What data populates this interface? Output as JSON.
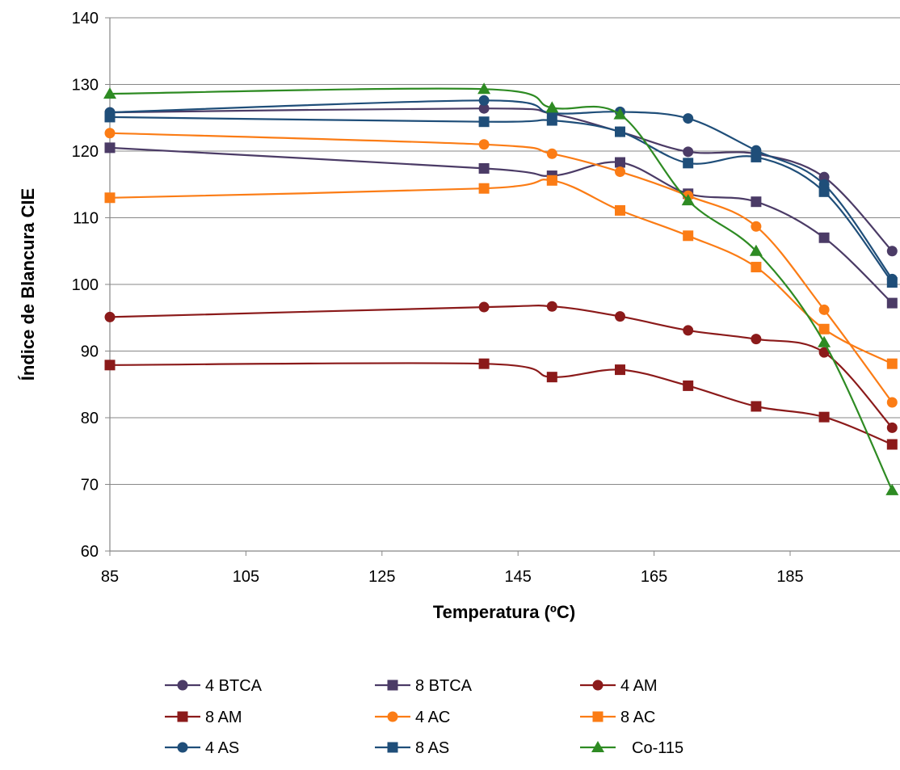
{
  "chart_data": {
    "type": "line",
    "title": "",
    "xlabel": "Temperatura (ºC)",
    "ylabel": "Índice de Blancura CIE",
    "xlim": [
      85,
      205
    ],
    "ylim": [
      60,
      140
    ],
    "x_ticks": [
      85,
      105,
      125,
      145,
      165,
      185
    ],
    "y_ticks": [
      60,
      70,
      80,
      90,
      100,
      110,
      120,
      130,
      140
    ],
    "grid": "horizontal",
    "smooth": true,
    "legend_position": "bottom",
    "series": [
      {
        "name": "4 BTCA",
        "color": "#4b3b66",
        "marker": "circle",
        "x": [
          85,
          140,
          150,
          160,
          170,
          180,
          190,
          200
        ],
        "y": [
          125.8,
          126.4,
          125.6,
          122.9,
          119.9,
          119.6,
          116.1,
          105
        ]
      },
      {
        "name": "8 BTCA",
        "color": "#4b3b66",
        "marker": "square",
        "x": [
          85,
          140,
          150,
          160,
          170,
          180,
          190,
          200
        ],
        "y": [
          120.5,
          117.4,
          116.3,
          118.3,
          113.6,
          112.4,
          107,
          97.2
        ]
      },
      {
        "name": "4 AM",
        "color": "#8b1a1a",
        "marker": "circle",
        "x": [
          85,
          140,
          150,
          160,
          170,
          180,
          190,
          200
        ],
        "y": [
          95.1,
          96.6,
          96.7,
          95.2,
          93.1,
          91.8,
          89.8,
          78.5
        ]
      },
      {
        "name": "8 AM",
        "color": "#8b1a1a",
        "marker": "square",
        "x": [
          85,
          140,
          150,
          160,
          170,
          180,
          190,
          200
        ],
        "y": [
          87.9,
          88.1,
          86.1,
          87.2,
          84.8,
          81.7,
          80.1,
          76
        ]
      },
      {
        "name": "4 AC",
        "color": "#fb7c15",
        "marker": "circle",
        "x": [
          85,
          140,
          150,
          160,
          170,
          180,
          190,
          200
        ],
        "y": [
          122.7,
          121,
          119.6,
          116.9,
          113.3,
          108.7,
          96.2,
          82.3
        ]
      },
      {
        "name": "8 AC",
        "color": "#fb7c15",
        "marker": "square",
        "x": [
          85,
          140,
          150,
          160,
          170,
          180,
          190,
          200
        ],
        "y": [
          113,
          114.4,
          115.6,
          111.1,
          107.3,
          102.6,
          93.3,
          88.1
        ]
      },
      {
        "name": "4 AS",
        "color": "#1f4e79",
        "marker": "circle",
        "x": [
          85,
          140,
          150,
          160,
          170,
          180,
          190,
          200
        ],
        "y": [
          125.8,
          127.6,
          125.7,
          125.9,
          124.9,
          120.1,
          115,
          100.8
        ]
      },
      {
        "name": "8 AS",
        "color": "#1f4e79",
        "marker": "square",
        "x": [
          85,
          140,
          150,
          160,
          170,
          180,
          190,
          200
        ],
        "y": [
          125.1,
          124.4,
          124.6,
          122.9,
          118.2,
          119.1,
          113.9,
          100.3
        ]
      },
      {
        "name": "Co-115",
        "color": "#2e8b23",
        "marker": "triangle",
        "x": [
          85,
          140,
          150,
          160,
          170,
          180,
          190,
          200
        ],
        "y": [
          128.6,
          129.3,
          126.5,
          125.5,
          112.6,
          105,
          91.3,
          69.1
        ]
      }
    ]
  }
}
